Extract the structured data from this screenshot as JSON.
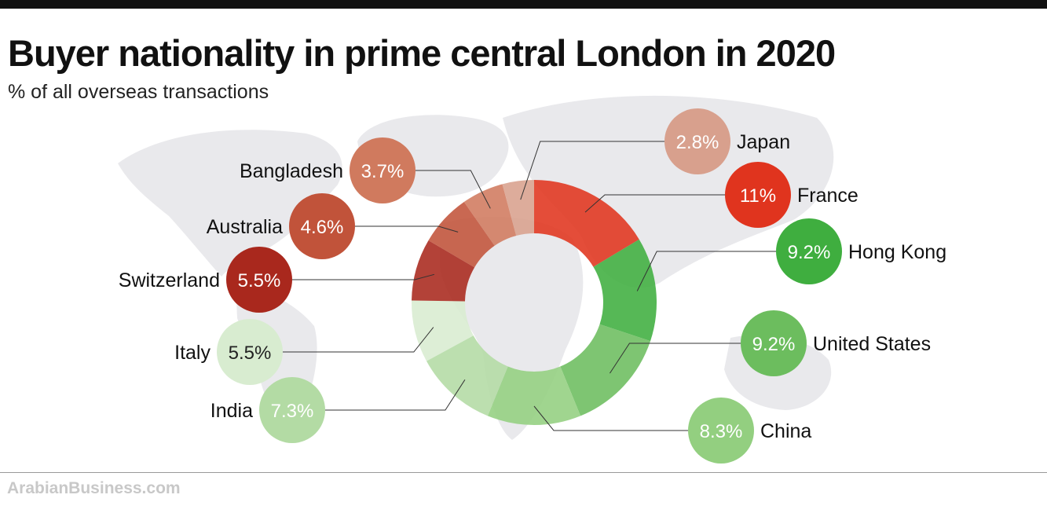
{
  "chart_data": {
    "type": "pie",
    "subtype": "donut",
    "title": "Buyer nationality in prime central London in 2020",
    "subtitle": "% of all overseas transactions",
    "unit": "%",
    "slices": [
      {
        "label": "France",
        "value": 11,
        "value_label": "11%",
        "color": "#e0341e"
      },
      {
        "label": "Hong Kong",
        "value": 9.2,
        "value_label": "9.2%",
        "color": "#3fae3f"
      },
      {
        "label": "United States",
        "value": 9.2,
        "value_label": "9.2%",
        "color": "#6cbd5e"
      },
      {
        "label": "China",
        "value": 8.3,
        "value_label": "8.3%",
        "color": "#93cf80"
      },
      {
        "label": "India",
        "value": 7.3,
        "value_label": "7.3%",
        "color": "#b3dba4"
      },
      {
        "label": "Italy",
        "value": 5.5,
        "value_label": "5.5%",
        "color": "#d8ecd0"
      },
      {
        "label": "Switzerland",
        "value": 5.5,
        "value_label": "5.5%",
        "color": "#a9281d"
      },
      {
        "label": "Australia",
        "value": 4.6,
        "value_label": "4.6%",
        "color": "#c1533a"
      },
      {
        "label": "Bangladesh",
        "value": 3.7,
        "value_label": "3.7%",
        "color": "#d07a5e"
      },
      {
        "label": "Japan",
        "value": 2.8,
        "value_label": "2.8%",
        "color": "#d8a08d"
      }
    ]
  },
  "source": "ArabianBusiness.com"
}
